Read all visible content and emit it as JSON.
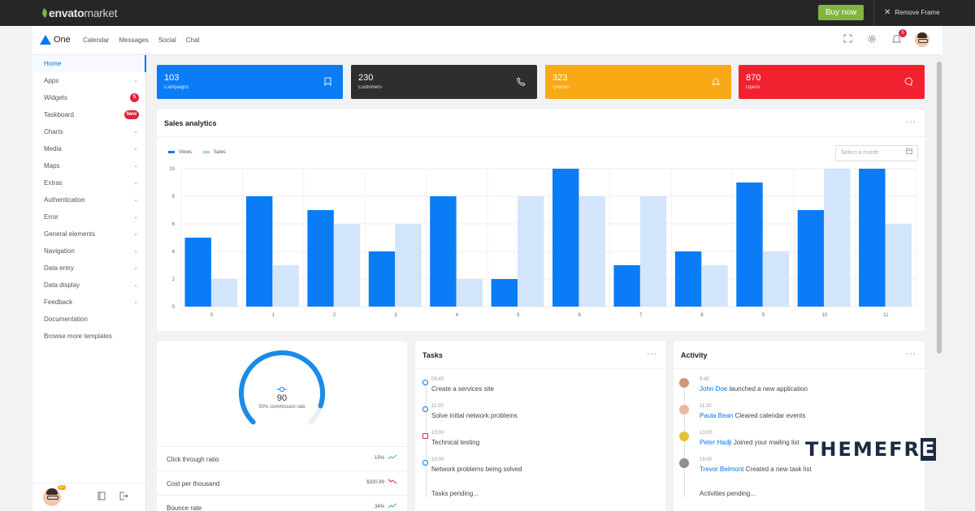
{
  "envato": {
    "logo_bold": "envato",
    "logo_light": "market",
    "buy_now": "Buy now",
    "remove_frame": "Remove Frame"
  },
  "header": {
    "brand": "One",
    "nav": [
      "Calendar",
      "Messages",
      "Social",
      "Chat"
    ],
    "notification_count": "5"
  },
  "sidebar": {
    "items": [
      {
        "label": "Home",
        "active": true
      },
      {
        "label": "Apps",
        "chevron": true
      },
      {
        "label": "Widgets",
        "badge": "5"
      },
      {
        "label": "Taskboard",
        "badge": "New"
      },
      {
        "label": "Charts",
        "chevron": true
      },
      {
        "label": "Media",
        "chevron": true
      },
      {
        "label": "Maps",
        "chevron": true
      },
      {
        "label": "Extras",
        "chevron": true
      },
      {
        "label": "Authentication",
        "chevron": true
      },
      {
        "label": "Error",
        "chevron": true
      },
      {
        "label": "General elements",
        "chevron": true
      },
      {
        "label": "Navigation",
        "chevron": true
      },
      {
        "label": "Data entry",
        "chevron": true
      },
      {
        "label": "Data display",
        "chevron": true
      },
      {
        "label": "Feedback",
        "chevron": true
      },
      {
        "label": "Documentation"
      },
      {
        "label": "Browse more templates"
      }
    ],
    "avatar_badge": "5+"
  },
  "stats": [
    {
      "value": "103",
      "label": "Campaigns",
      "color": "#0a7cf5",
      "icon": "bookmark-icon"
    },
    {
      "value": "230",
      "label": "Customers",
      "color": "#2e2e2e",
      "icon": "phone-icon"
    },
    {
      "value": "323",
      "label": "Queries",
      "color": "#f7a916",
      "icon": "bell-icon"
    },
    {
      "value": "870",
      "label": "Opens",
      "color": "#f2212f",
      "icon": "chat-icon"
    }
  ],
  "analytics": {
    "title": "Sales analytics",
    "month_placeholder": "Select a month"
  },
  "chart_data": {
    "type": "bar",
    "title": "Sales analytics",
    "categories": [
      "0",
      "1",
      "2",
      "3",
      "4",
      "5",
      "6",
      "7",
      "8",
      "9",
      "10",
      "11"
    ],
    "series": [
      {
        "name": "Views",
        "color": "#0a7cf5",
        "values": [
          5,
          8,
          7,
          4,
          8,
          2,
          10,
          3,
          4,
          9,
          7,
          10
        ]
      },
      {
        "name": "Sales",
        "color": "#d3e5fb",
        "values": [
          2,
          3,
          6,
          6,
          2,
          8,
          8,
          8,
          3,
          4,
          10,
          6
        ]
      }
    ],
    "yticks": [
      "0",
      "2",
      "4",
      "6",
      "8",
      "10"
    ],
    "ylim": [
      0,
      10
    ],
    "grid": true,
    "legend": "top-left"
  },
  "gauge": {
    "value": "90",
    "label": "50% commission rate",
    "fraction": 0.9
  },
  "metrics": [
    {
      "label": "Click through ratio",
      "value": "15%",
      "trend": "up"
    },
    {
      "label": "Cost per thousand",
      "value": "$320.89",
      "trend": "down"
    },
    {
      "label": "Bounce rate",
      "value": "34%",
      "trend": "up"
    }
  ],
  "tasks": {
    "title": "Tasks",
    "items": [
      {
        "time": "09:45",
        "text": "Create a services site"
      },
      {
        "time": "11:20",
        "text": "Solve initial network problems"
      },
      {
        "time": "13:00",
        "text": "Technical testing"
      },
      {
        "time": "15:00",
        "text": "Network problems being solved"
      }
    ],
    "pending": "Tasks pending..."
  },
  "activity": {
    "title": "Activity",
    "items": [
      {
        "time": "9:45",
        "name": "John Doe",
        "text": "launched a new application"
      },
      {
        "time": "11:20",
        "name": "Paula Bean",
        "text": "Cleared calendar events"
      },
      {
        "time": "13:00",
        "name": "Peter Hadji",
        "text": "Joined your mailing list"
      },
      {
        "time": "15:00",
        "name": "Trevor Belmont",
        "text": "Created a new task list"
      }
    ],
    "pending": "Activities pending..."
  },
  "watermark": {
    "text": "THEMEFR",
    "last": "E"
  }
}
